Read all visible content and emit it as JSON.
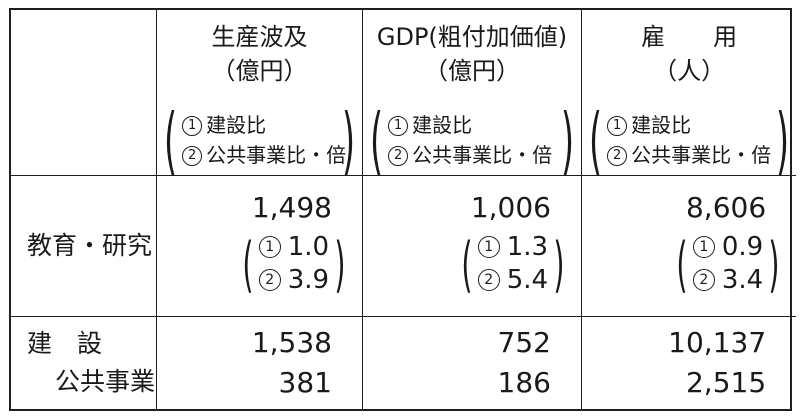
{
  "marks": {
    "m1": "1",
    "m2": "2"
  },
  "glyphs": {
    "open": "(",
    "close": ")"
  },
  "header": {
    "cols": [
      {
        "line1": "生産波及",
        "line2": "（億円）",
        "note1": "建設比",
        "note2": "公共事業比・倍"
      },
      {
        "line1": "GDP(粗付加価値)",
        "line2": "（億円）",
        "note1": "建設比",
        "note2": "公共事業比・倍"
      },
      {
        "line1": "雇　　用",
        "line2": "（人）",
        "note1": "建設比",
        "note2": "公共事業比・倍"
      }
    ]
  },
  "body": {
    "row1": {
      "label": "教育・研究",
      "cells": [
        {
          "value": "1,498",
          "r1": "1.0",
          "r2": "3.9"
        },
        {
          "value": "1,006",
          "r1": "1.3",
          "r2": "5.4"
        },
        {
          "value": "8,606",
          "r1": "0.9",
          "r2": "3.4"
        }
      ]
    },
    "row2": {
      "label1": "建　設",
      "label2": "公共事業",
      "cells": [
        {
          "v1": "1,538",
          "v2": "381"
        },
        {
          "v1": "752",
          "v2": "186"
        },
        {
          "v1": "10,137",
          "v2": "2,515"
        }
      ]
    }
  },
  "chart_data": {
    "type": "table",
    "title": "",
    "column_headers": [
      "",
      "生産波及（億円）",
      "GDP（粗付加価値）（億円）",
      "雇用（人）"
    ],
    "column_note": "各列の括弧内: ①建設比 ②公共事業比・倍",
    "rows": [
      {
        "label": "教育・研究",
        "生産波及_億円": 1498,
        "生産波及_建設比": 1.0,
        "生産波及_公共事業比": 3.9,
        "GDP_億円": 1006,
        "GDP_建設比": 1.3,
        "GDP_公共事業比": 5.4,
        "雇用_人": 8606,
        "雇用_建設比": 0.9,
        "雇用_公共事業比": 3.4
      },
      {
        "label": "建設",
        "生産波及_億円": 1538,
        "GDP_億円": 752,
        "雇用_人": 10137
      },
      {
        "label": "公共事業",
        "生産波及_億円": 381,
        "GDP_億円": 186,
        "雇用_人": 2515
      }
    ]
  }
}
